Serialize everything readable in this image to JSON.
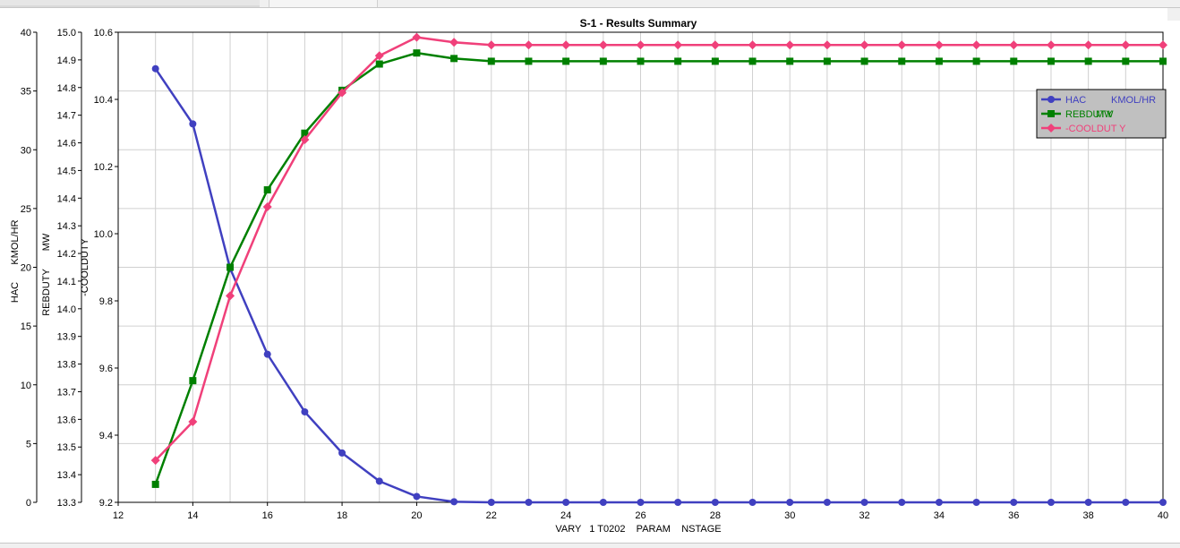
{
  "chart_data": {
    "type": "line",
    "title": "S-1 - Results Summary",
    "xlabel": "VARY   1 T0202    PARAM    NSTAGE",
    "xlim": [
      12,
      40
    ],
    "x_ticks": [
      12,
      14,
      16,
      18,
      20,
      22,
      24,
      26,
      28,
      30,
      32,
      34,
      36,
      38,
      40
    ],
    "x": [
      13,
      14,
      15,
      16,
      17,
      18,
      19,
      20,
      21,
      22,
      23,
      24,
      25,
      26,
      27,
      28,
      29,
      30,
      31,
      32,
      33,
      34,
      35,
      36,
      37,
      38,
      39,
      40
    ],
    "axes": [
      {
        "id": "hac",
        "label_name": "HAC",
        "label_unit": "KMOL/HR",
        "ylim": [
          0,
          40
        ],
        "ticks": [
          "0",
          "5",
          "10",
          "15",
          "20",
          "25",
          "30",
          "35",
          "40"
        ]
      },
      {
        "id": "reb",
        "label_name": "REBDUTY",
        "label_unit": "MW",
        "ylim": [
          13.3,
          15.0
        ],
        "ticks": [
          "13.3",
          "13.4",
          "13.5",
          "13.6",
          "13.7",
          "13.8",
          "13.9",
          "14.0",
          "14.1",
          "14.2",
          "14.3",
          "14.4",
          "14.5",
          "14.6",
          "14.7",
          "14.8",
          "14.9",
          "15.0"
        ]
      },
      {
        "id": "cool",
        "label_name": "-COOLDUTY",
        "label_unit": "",
        "ylim": [
          9.2,
          10.6
        ],
        "ticks": [
          "9.2",
          "9.4",
          "9.6",
          "9.8",
          "10.0",
          "10.2",
          "10.4",
          "10.6"
        ]
      }
    ],
    "series": [
      {
        "name": "HAC",
        "unit": "KMOL/HR",
        "axis": "hac",
        "color": "#4040c0",
        "marker": "circle",
        "values": [
          36.9,
          32.2,
          19.9,
          12.6,
          7.7,
          4.2,
          1.8,
          0.5,
          0.05,
          0.0,
          0.0,
          0.0,
          0.0,
          0.0,
          0.0,
          0.0,
          0.0,
          0.0,
          0.0,
          0.0,
          0.0,
          0.0,
          0.0,
          0.0,
          0.0,
          0.0,
          0.0,
          0.0
        ]
      },
      {
        "name": "REBDUTY",
        "unit": "MW",
        "axis": "reb",
        "color": "#008000",
        "marker": "square",
        "values": [
          13.365,
          13.74,
          14.15,
          14.43,
          14.635,
          14.79,
          14.885,
          14.925,
          14.905,
          14.895,
          14.895,
          14.895,
          14.895,
          14.895,
          14.895,
          14.895,
          14.895,
          14.895,
          14.895,
          14.895,
          14.895,
          14.895,
          14.895,
          14.895,
          14.895,
          14.895,
          14.895,
          14.895
        ]
      },
      {
        "name": "-COOLDUTY",
        "unit": "",
        "axis": "cool",
        "color": "#f0407a",
        "marker": "diamond",
        "values": [
          9.325,
          9.44,
          9.815,
          10.08,
          10.28,
          10.42,
          10.53,
          10.585,
          10.57,
          10.562,
          10.562,
          10.562,
          10.562,
          10.562,
          10.562,
          10.562,
          10.562,
          10.562,
          10.562,
          10.562,
          10.562,
          10.562,
          10.562,
          10.562,
          10.562,
          10.562,
          10.562,
          10.562
        ]
      }
    ],
    "legend": {
      "placement": "top-right",
      "background": "#c0c0c0",
      "entries": [
        {
          "name": "HAC",
          "unit": "KMOL/HR"
        },
        {
          "name": "REBDUTY",
          "unit": "MW"
        },
        {
          "name": "-COOLDUT Y",
          "unit": ""
        }
      ]
    },
    "grid": true
  }
}
